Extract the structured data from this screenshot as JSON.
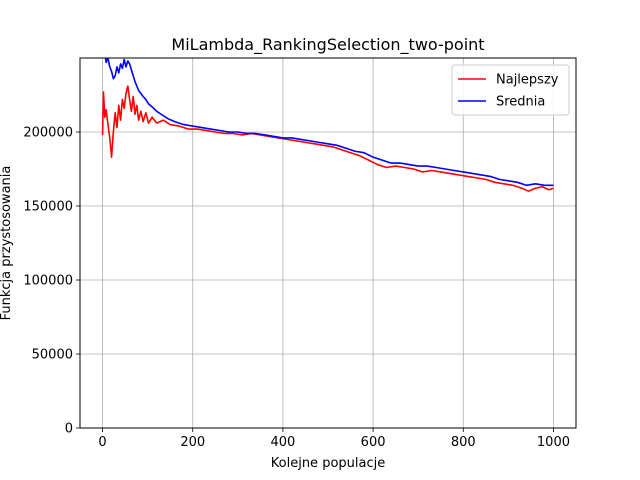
{
  "chart_data": {
    "type": "line",
    "title": "MiLambda_RankingSelection_two-point",
    "xlabel": "Kolejne populacje",
    "ylabel": "Funkcja przystosowania",
    "xlim": [
      -50,
      1050
    ],
    "ylim": [
      0,
      250000
    ],
    "xticks": [
      0,
      200,
      400,
      600,
      800,
      1000
    ],
    "yticks": [
      0,
      50000,
      100000,
      150000,
      200000
    ],
    "grid": true,
    "legend_position": "top-right",
    "series": [
      {
        "name": "Najlepszy",
        "color": "#ff0000",
        "points": [
          [
            0,
            198000
          ],
          [
            2,
            227000
          ],
          [
            5,
            210000
          ],
          [
            8,
            215000
          ],
          [
            12,
            205000
          ],
          [
            16,
            196000
          ],
          [
            20,
            183000
          ],
          [
            24,
            200000
          ],
          [
            28,
            213000
          ],
          [
            32,
            203000
          ],
          [
            36,
            218000
          ],
          [
            40,
            208000
          ],
          [
            44,
            222000
          ],
          [
            48,
            216000
          ],
          [
            52,
            226000
          ],
          [
            56,
            231000
          ],
          [
            60,
            222000
          ],
          [
            64,
            214000
          ],
          [
            68,
            224000
          ],
          [
            72,
            212000
          ],
          [
            76,
            218000
          ],
          [
            80,
            208000
          ],
          [
            85,
            214000
          ],
          [
            90,
            207000
          ],
          [
            96,
            213000
          ],
          [
            102,
            206000
          ],
          [
            110,
            210000
          ],
          [
            120,
            206000
          ],
          [
            135,
            208000
          ],
          [
            150,
            205000
          ],
          [
            170,
            204000
          ],
          [
            190,
            202000
          ],
          [
            210,
            202000
          ],
          [
            230,
            201000
          ],
          [
            250,
            200000
          ],
          [
            270,
            199000
          ],
          [
            290,
            199000
          ],
          [
            310,
            198000
          ],
          [
            330,
            199000
          ],
          [
            350,
            198000
          ],
          [
            370,
            197000
          ],
          [
            390,
            196000
          ],
          [
            410,
            195000
          ],
          [
            430,
            194000
          ],
          [
            450,
            193000
          ],
          [
            470,
            192000
          ],
          [
            490,
            191000
          ],
          [
            510,
            190000
          ],
          [
            530,
            188000
          ],
          [
            550,
            186000
          ],
          [
            570,
            184000
          ],
          [
            590,
            181000
          ],
          [
            610,
            178000
          ],
          [
            630,
            176000
          ],
          [
            650,
            177000
          ],
          [
            670,
            176000
          ],
          [
            690,
            175000
          ],
          [
            710,
            173000
          ],
          [
            730,
            174000
          ],
          [
            750,
            173000
          ],
          [
            770,
            172000
          ],
          [
            790,
            171000
          ],
          [
            810,
            170000
          ],
          [
            830,
            169000
          ],
          [
            850,
            168000
          ],
          [
            870,
            166000
          ],
          [
            890,
            165000
          ],
          [
            910,
            164000
          ],
          [
            930,
            162000
          ],
          [
            945,
            160000
          ],
          [
            960,
            162000
          ],
          [
            975,
            163000
          ],
          [
            990,
            161000
          ],
          [
            1000,
            162000
          ]
        ]
      },
      {
        "name": "Srednia",
        "color": "#0000ff",
        "points": [
          [
            0,
            262000
          ],
          [
            4,
            255000
          ],
          [
            8,
            247000
          ],
          [
            12,
            250000
          ],
          [
            16,
            244000
          ],
          [
            20,
            241000
          ],
          [
            24,
            236000
          ],
          [
            28,
            238000
          ],
          [
            32,
            244000
          ],
          [
            36,
            240000
          ],
          [
            40,
            246000
          ],
          [
            44,
            243000
          ],
          [
            48,
            249000
          ],
          [
            52,
            244000
          ],
          [
            56,
            248000
          ],
          [
            60,
            246000
          ],
          [
            64,
            242000
          ],
          [
            68,
            238000
          ],
          [
            72,
            234000
          ],
          [
            76,
            231000
          ],
          [
            80,
            228000
          ],
          [
            85,
            226000
          ],
          [
            90,
            224000
          ],
          [
            96,
            222000
          ],
          [
            102,
            219000
          ],
          [
            110,
            217000
          ],
          [
            120,
            214000
          ],
          [
            130,
            212000
          ],
          [
            145,
            209000
          ],
          [
            160,
            207000
          ],
          [
            180,
            205000
          ],
          [
            200,
            204000
          ],
          [
            220,
            203000
          ],
          [
            240,
            202000
          ],
          [
            260,
            201000
          ],
          [
            280,
            200000
          ],
          [
            300,
            200000
          ],
          [
            320,
            199000
          ],
          [
            340,
            199000
          ],
          [
            360,
            198000
          ],
          [
            380,
            197000
          ],
          [
            400,
            196000
          ],
          [
            420,
            196000
          ],
          [
            440,
            195000
          ],
          [
            460,
            194000
          ],
          [
            480,
            193000
          ],
          [
            500,
            192000
          ],
          [
            520,
            191000
          ],
          [
            540,
            189000
          ],
          [
            560,
            187000
          ],
          [
            580,
            186000
          ],
          [
            600,
            183000
          ],
          [
            620,
            181000
          ],
          [
            640,
            179000
          ],
          [
            660,
            179000
          ],
          [
            680,
            178000
          ],
          [
            700,
            177000
          ],
          [
            720,
            177000
          ],
          [
            740,
            176000
          ],
          [
            760,
            175000
          ],
          [
            780,
            174000
          ],
          [
            800,
            173000
          ],
          [
            820,
            172000
          ],
          [
            840,
            171000
          ],
          [
            860,
            170000
          ],
          [
            880,
            168000
          ],
          [
            900,
            167000
          ],
          [
            920,
            166000
          ],
          [
            940,
            164000
          ],
          [
            960,
            165000
          ],
          [
            980,
            164000
          ],
          [
            1000,
            164000
          ]
        ]
      }
    ]
  }
}
